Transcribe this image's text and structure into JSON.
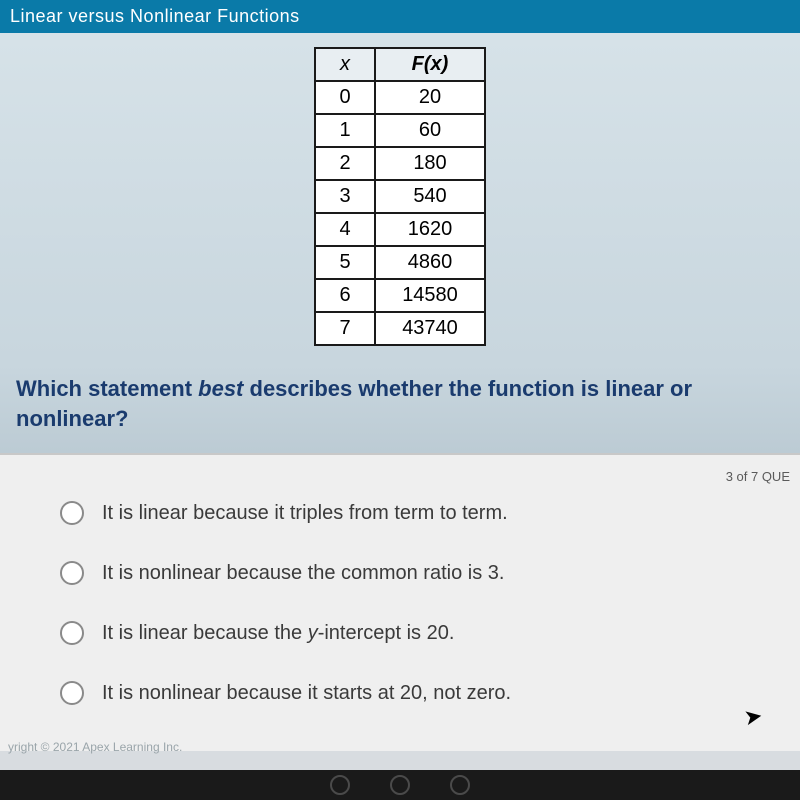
{
  "header": {
    "title": "Linear versus Nonlinear Functions"
  },
  "table": {
    "columns": [
      "x",
      "F(x)"
    ],
    "rows": [
      [
        "0",
        "20"
      ],
      [
        "1",
        "60"
      ],
      [
        "2",
        "180"
      ],
      [
        "3",
        "540"
      ],
      [
        "4",
        "1620"
      ],
      [
        "5",
        "4860"
      ],
      [
        "6",
        "14580"
      ],
      [
        "7",
        "43740"
      ]
    ],
    "border_color": "#1a1a1a",
    "bg_color": "#ffffff",
    "font_size": 20
  },
  "question": {
    "prefix": "Which statement ",
    "emph": "best",
    "suffix": " describes whether the function is linear or nonlinear?",
    "color": "#1a3b6e",
    "font_size": 22
  },
  "progress": "3 of 7 QUE",
  "options": [
    {
      "text": "It is linear because it triples from term to term."
    },
    {
      "text": "It is nonlinear because the common ratio is 3."
    },
    {
      "prefix": "It is linear because the ",
      "emph": "y",
      "suffix": "-intercept is 20."
    },
    {
      "text": "It is nonlinear because it starts at 20, not zero."
    }
  ],
  "footer": "yright © 2021 Apex Learning Inc.",
  "colors": {
    "header_bg": "#0a7aa8",
    "answers_bg": "#efefef",
    "radio_border": "#8a8a8a"
  }
}
